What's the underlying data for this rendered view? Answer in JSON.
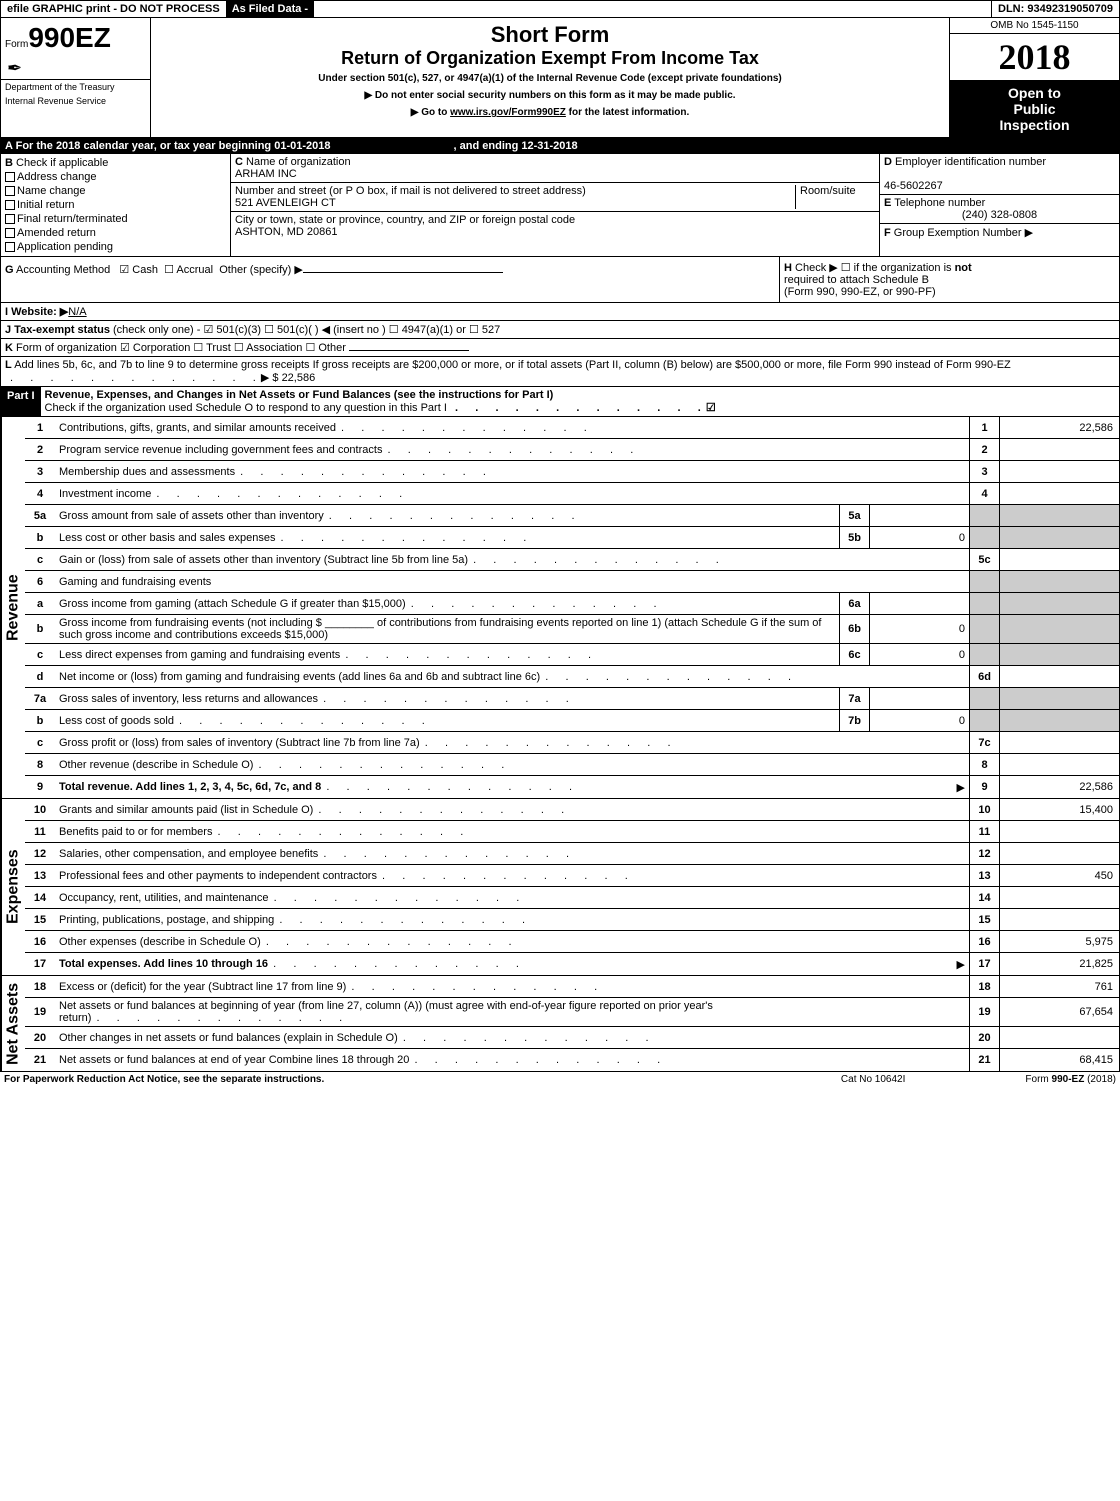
{
  "topbar": {
    "left": "efile GRAPHIC print - DO NOT PROCESS",
    "mid": "As Filed Data -",
    "right": "DLN: 93492319050709"
  },
  "header": {
    "form_prefix": "Form",
    "form_number": "990EZ",
    "dept1": "Department of the Treasury",
    "dept2": "Internal Revenue Service",
    "short_form": "Short Form",
    "title": "Return of Organization Exempt From Income Tax",
    "subtitle": "Under section 501(c), 527, or 4947(a)(1) of the Internal Revenue Code (except private foundations)",
    "arrow1": "▶ Do not enter social security numbers on this form as it may be made public.",
    "arrow2": "▶ Go to www.irs.gov/Form990EZ for the latest information.",
    "omb": "OMB No 1545-1150",
    "year": "2018",
    "inspect1": "Open to",
    "inspect2": "Public",
    "inspect3": "Inspection"
  },
  "sectionA": {
    "label_a": "A",
    "text": "For the 2018 calendar year, or tax year beginning 01-01-2018",
    "ending": ", and ending 12-31-2018"
  },
  "sectionB": {
    "label": "B",
    "check_if": "Check if applicable",
    "items": [
      "Address change",
      "Name change",
      "Initial return",
      "Final return/terminated",
      "Amended return",
      "Application pending"
    ]
  },
  "sectionC": {
    "label_c": "C",
    "name_label": "Name of organization",
    "name": "ARHAM INC",
    "street_label": "Number and street (or P  O  box, if mail is not delivered to street address)",
    "room_label": "Room/suite",
    "street": "521 AVENLEIGH CT",
    "city_label": "City or town, state or province, country, and ZIP or foreign postal code",
    "city": "ASHTON, MD  20861"
  },
  "sectionD": {
    "label": "D",
    "text": "Employer identification number",
    "value": "46-5602267"
  },
  "sectionE": {
    "label": "E",
    "text": "Telephone number",
    "value": "(240) 328-0808"
  },
  "sectionF": {
    "label": "F",
    "text": "Group Exemption Number   ▶"
  },
  "sectionG": {
    "label": "G",
    "text": "Accounting Method",
    "cash": "☑ Cash",
    "accrual": "☐ Accrual",
    "other": "Other (specify) ▶"
  },
  "sectionH": {
    "label": "H",
    "text1": "Check ▶   ☐  if the organization is ",
    "not": "not",
    "text2": "required to attach Schedule B",
    "text3": "(Form 990, 990-EZ, or 990-PF)"
  },
  "sectionI": {
    "label": "I Website: ▶",
    "value": "N/A"
  },
  "sectionJ": {
    "label": "J Tax-exempt status",
    "text": "(check only one) - ☑ 501(c)(3)  ☐ 501(c)( ) ◀ (insert no ) ☐ 4947(a)(1) or ☐ 527"
  },
  "sectionK": {
    "label": "K",
    "text": "Form of organization   ☑ Corporation   ☐ Trust   ☐ Association   ☐ Other"
  },
  "sectionL": {
    "label": "L",
    "text": "Add lines 5b, 6c, and 7b to line 9 to determine gross receipts  If gross receipts are $200,000 or more, or if total assets (Part II, column (B) below) are $500,000 or more, file Form 990 instead of Form 990-EZ",
    "amount_arrow": "▶ $ 22,586"
  },
  "part1": {
    "header": "Part I",
    "title": "Revenue, Expenses, and Changes in Net Assets or Fund Balances (see the instructions for Part I)",
    "check_text": "Check if the organization used Schedule O to respond to any question in this Part I",
    "check_mark": "☑"
  },
  "vlabels": {
    "revenue": "Revenue",
    "expenses": "Expenses",
    "netassets": "Net Assets"
  },
  "lines": {
    "l1": {
      "num": "1",
      "desc": "Contributions, gifts, grants, and similar amounts received",
      "box": "1",
      "val": "22,586"
    },
    "l2": {
      "num": "2",
      "desc": "Program service revenue including government fees and contracts",
      "box": "2",
      "val": ""
    },
    "l3": {
      "num": "3",
      "desc": "Membership dues and assessments",
      "box": "3",
      "val": ""
    },
    "l4": {
      "num": "4",
      "desc": "Investment income",
      "box": "4",
      "val": ""
    },
    "l5a": {
      "num": "5a",
      "desc": "Gross amount from sale of assets other than inventory",
      "inbox": "5a",
      "inval": ""
    },
    "l5b": {
      "num": "b",
      "desc": "Less  cost or other basis and sales expenses",
      "inbox": "5b",
      "inval": "0"
    },
    "l5c": {
      "num": "c",
      "desc": "Gain or (loss) from sale of assets other than inventory (Subtract line 5b from line 5a)",
      "box": "5c",
      "val": ""
    },
    "l6": {
      "num": "6",
      "desc": "Gaming and fundraising events"
    },
    "l6a": {
      "num": "a",
      "desc": "Gross income from gaming (attach Schedule G if greater than $15,000)",
      "inbox": "6a",
      "inval": ""
    },
    "l6b": {
      "num": "b",
      "desc": "Gross income from fundraising events (not including $ ________ of contributions from fundraising events reported on line 1) (attach Schedule G if the sum of such gross income and contributions exceeds $15,000)",
      "inbox": "6b",
      "inval": "0"
    },
    "l6c": {
      "num": "c",
      "desc": "Less  direct expenses from gaming and fundraising events",
      "inbox": "6c",
      "inval": "0"
    },
    "l6d": {
      "num": "d",
      "desc": "Net income or (loss) from gaming and fundraising events (add lines 6a and 6b and subtract line 6c)",
      "box": "6d",
      "val": ""
    },
    "l7a": {
      "num": "7a",
      "desc": "Gross sales of inventory, less returns and allowances",
      "inbox": "7a",
      "inval": ""
    },
    "l7b": {
      "num": "b",
      "desc": "Less  cost of goods sold",
      "inbox": "7b",
      "inval": "0"
    },
    "l7c": {
      "num": "c",
      "desc": "Gross profit or (loss) from sales of inventory (Subtract line 7b from line 7a)",
      "box": "7c",
      "val": ""
    },
    "l8": {
      "num": "8",
      "desc": "Other revenue (describe in Schedule O)",
      "box": "8",
      "val": ""
    },
    "l9": {
      "num": "9",
      "desc": "Total revenue. Add lines 1, 2, 3, 4, 5c, 6d, 7c, and 8",
      "box": "9",
      "val": "22,586",
      "arrow": "▶",
      "bold": true
    },
    "l10": {
      "num": "10",
      "desc": "Grants and similar amounts paid (list in Schedule O)",
      "box": "10",
      "val": "15,400"
    },
    "l11": {
      "num": "11",
      "desc": "Benefits paid to or for members",
      "box": "11",
      "val": ""
    },
    "l12": {
      "num": "12",
      "desc": "Salaries, other compensation, and employee benefits",
      "box": "12",
      "val": ""
    },
    "l13": {
      "num": "13",
      "desc": "Professional fees and other payments to independent contractors",
      "box": "13",
      "val": "450"
    },
    "l14": {
      "num": "14",
      "desc": "Occupancy, rent, utilities, and maintenance",
      "box": "14",
      "val": ""
    },
    "l15": {
      "num": "15",
      "desc": "Printing, publications, postage, and shipping",
      "box": "15",
      "val": ""
    },
    "l16": {
      "num": "16",
      "desc": "Other expenses (describe in Schedule O)",
      "box": "16",
      "val": "5,975"
    },
    "l17": {
      "num": "17",
      "desc": "Total expenses. Add lines 10 through 16",
      "box": "17",
      "val": "21,825",
      "arrow": "▶",
      "bold": true
    },
    "l18": {
      "num": "18",
      "desc": "Excess or (deficit) for the year (Subtract line 17 from line 9)",
      "box": "18",
      "val": "761"
    },
    "l19": {
      "num": "19",
      "desc": "Net assets or fund balances at beginning of year (from line 27, column (A)) (must agree with end-of-year figure reported on prior year's return)",
      "box": "19",
      "val": "67,654"
    },
    "l20": {
      "num": "20",
      "desc": "Other changes in net assets or fund balances (explain in Schedule O)",
      "box": "20",
      "val": ""
    },
    "l21": {
      "num": "21",
      "desc": "Net assets or fund balances at end of year  Combine lines 18 through 20",
      "box": "21",
      "val": "68,415"
    }
  },
  "footer": {
    "left": "For Paperwork Reduction Act Notice, see the separate instructions.",
    "mid": "Cat  No  10642I",
    "right": "Form 990-EZ (2018)"
  }
}
